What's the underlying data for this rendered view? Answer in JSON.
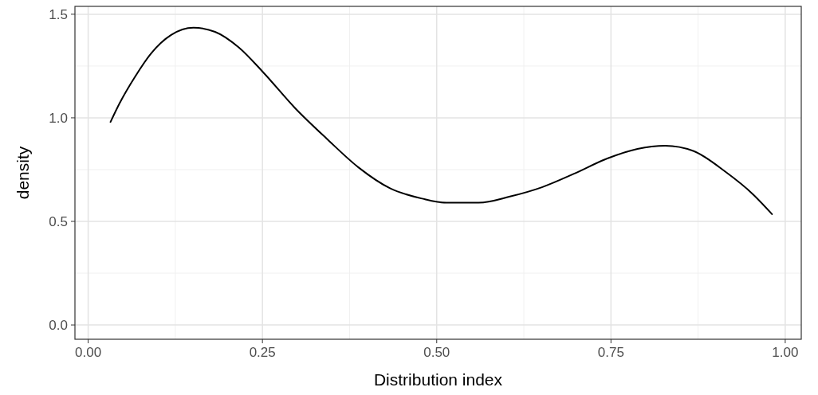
{
  "chart_data": {
    "type": "line",
    "xlabel": "Distribution index",
    "ylabel": "density",
    "x": [
      0.032,
      0.045,
      0.0675,
      0.09,
      0.119,
      0.151,
      0.182,
      0.216,
      0.251,
      0.296,
      0.342,
      0.388,
      0.433,
      0.479,
      0.514,
      0.56,
      0.605,
      0.651,
      0.697,
      0.742,
      0.788,
      0.828,
      0.868,
      0.914,
      0.954,
      0.981
    ],
    "series": [
      {
        "color": "#000000",
        "values": [
          0.98,
          1.07,
          1.2,
          1.31,
          1.4,
          1.435,
          1.415,
          1.34,
          1.22,
          1.05,
          0.9,
          0.76,
          0.66,
          0.61,
          0.59,
          0.59,
          0.62,
          0.665,
          0.73,
          0.8,
          0.85,
          0.865,
          0.84,
          0.74,
          0.63,
          0.535
        ]
      }
    ],
    "xlim": [
      -0.019,
      1.023
    ],
    "ylim": [
      -0.069,
      1.538
    ],
    "xticks": [
      {
        "value": 0,
        "label": "0.00"
      },
      {
        "value": 0.25,
        "label": "0.25"
      },
      {
        "value": 0.5,
        "label": "0.50"
      },
      {
        "value": 0.75,
        "label": "0.75"
      },
      {
        "value": 1,
        "label": "1.00"
      }
    ],
    "yticks": [
      {
        "value": 0,
        "label": "0.0"
      },
      {
        "value": 0.5,
        "label": "0.5"
      },
      {
        "value": 1,
        "label": "1.0"
      },
      {
        "value": 1.5,
        "label": "1.5"
      }
    ],
    "grid": true,
    "marker": "none",
    "line_style": "solid"
  }
}
